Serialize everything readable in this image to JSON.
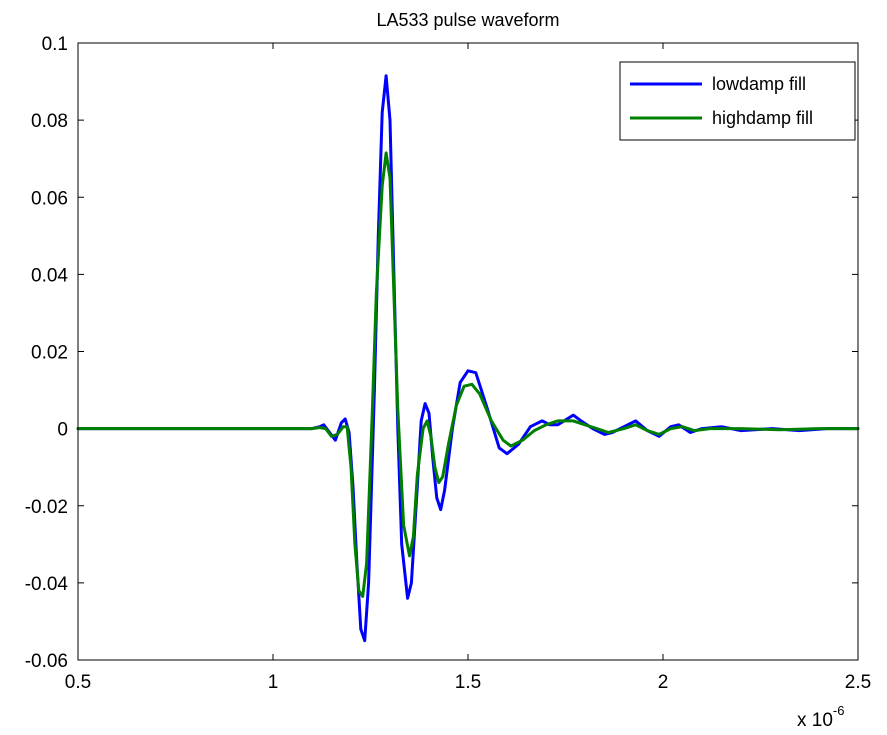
{
  "chart_data": {
    "type": "line",
    "title": "LA533 pulse waveform",
    "xlabel": "",
    "ylabel": "",
    "x_exponent_label": "x 10",
    "x_exponent_power": "-6",
    "xlim": [
      0.5,
      2.5
    ],
    "ylim": [
      -0.06,
      0.1
    ],
    "x_ticks": [
      0.5,
      1,
      1.5,
      2,
      2.5
    ],
    "x_tick_labels": [
      "0.5",
      "1",
      "1.5",
      "2",
      "2.5"
    ],
    "y_ticks": [
      -0.06,
      -0.04,
      -0.02,
      0,
      0.02,
      0.04,
      0.06,
      0.08,
      0.1
    ],
    "y_tick_labels": [
      "-0.06",
      "-0.04",
      "-0.02",
      "0",
      "0.02",
      "0.04",
      "0.06",
      "0.08",
      "0.1"
    ],
    "grid": false,
    "legend_position": "top-right",
    "series": [
      {
        "name": "lowdamp fill",
        "color": "#0000ff",
        "points": [
          [
            0.5,
            0
          ],
          [
            1.1,
            0
          ],
          [
            1.12,
            0.0005
          ],
          [
            1.13,
            0.001
          ],
          [
            1.145,
            -0.001
          ],
          [
            1.16,
            -0.003
          ],
          [
            1.175,
            0.0015
          ],
          [
            1.185,
            0.0025
          ],
          [
            1.195,
            -0.001
          ],
          [
            1.205,
            -0.015
          ],
          [
            1.215,
            -0.035
          ],
          [
            1.225,
            -0.052
          ],
          [
            1.235,
            -0.055
          ],
          [
            1.245,
            -0.04
          ],
          [
            1.26,
            0.01
          ],
          [
            1.27,
            0.05
          ],
          [
            1.28,
            0.082
          ],
          [
            1.29,
            0.0915
          ],
          [
            1.3,
            0.08
          ],
          [
            1.31,
            0.04
          ],
          [
            1.32,
            0
          ],
          [
            1.33,
            -0.03
          ],
          [
            1.345,
            -0.044
          ],
          [
            1.355,
            -0.04
          ],
          [
            1.37,
            -0.015
          ],
          [
            1.38,
            0.002
          ],
          [
            1.39,
            0.0065
          ],
          [
            1.4,
            0.004
          ],
          [
            1.41,
            -0.008
          ],
          [
            1.42,
            -0.018
          ],
          [
            1.43,
            -0.021
          ],
          [
            1.44,
            -0.016
          ],
          [
            1.46,
            0
          ],
          [
            1.48,
            0.012
          ],
          [
            1.5,
            0.015
          ],
          [
            1.52,
            0.0145
          ],
          [
            1.55,
            0.005
          ],
          [
            1.58,
            -0.005
          ],
          [
            1.6,
            -0.0065
          ],
          [
            1.63,
            -0.004
          ],
          [
            1.66,
            0.0005
          ],
          [
            1.69,
            0.002
          ],
          [
            1.71,
            0.001
          ],
          [
            1.73,
            0.001
          ],
          [
            1.77,
            0.0035
          ],
          [
            1.79,
            0.002
          ],
          [
            1.82,
            0
          ],
          [
            1.85,
            -0.0015
          ],
          [
            1.87,
            -0.001
          ],
          [
            1.9,
            0.0005
          ],
          [
            1.93,
            0.002
          ],
          [
            1.96,
            -0.0005
          ],
          [
            1.99,
            -0.002
          ],
          [
            2.02,
            0.0005
          ],
          [
            2.04,
            0.001
          ],
          [
            2.07,
            -0.001
          ],
          [
            2.1,
            0
          ],
          [
            2.15,
            0.0005
          ],
          [
            2.2,
            -0.0005
          ],
          [
            2.28,
            0
          ],
          [
            2.35,
            -0.0005
          ],
          [
            2.42,
            0
          ],
          [
            2.5,
            0
          ]
        ]
      },
      {
        "name": "highdamp fill",
        "color": "#008000",
        "points": [
          [
            0.5,
            0
          ],
          [
            1.1,
            0
          ],
          [
            1.12,
            0.0003
          ],
          [
            1.135,
            0
          ],
          [
            1.15,
            -0.002
          ],
          [
            1.165,
            -0.0015
          ],
          [
            1.18,
            0.0005
          ],
          [
            1.19,
            0.0005
          ],
          [
            1.2,
            -0.01
          ],
          [
            1.21,
            -0.03
          ],
          [
            1.22,
            -0.042
          ],
          [
            1.23,
            -0.0435
          ],
          [
            1.24,
            -0.035
          ],
          [
            1.255,
            0.005
          ],
          [
            1.265,
            0.035
          ],
          [
            1.28,
            0.063
          ],
          [
            1.29,
            0.0715
          ],
          [
            1.3,
            0.065
          ],
          [
            1.31,
            0.035
          ],
          [
            1.32,
            0.005
          ],
          [
            1.335,
            -0.025
          ],
          [
            1.35,
            -0.033
          ],
          [
            1.36,
            -0.028
          ],
          [
            1.37,
            -0.012
          ],
          [
            1.385,
            0
          ],
          [
            1.395,
            0.002
          ],
          [
            1.405,
            -0.002
          ],
          [
            1.415,
            -0.01
          ],
          [
            1.425,
            -0.014
          ],
          [
            1.435,
            -0.0125
          ],
          [
            1.45,
            -0.004
          ],
          [
            1.47,
            0.006
          ],
          [
            1.49,
            0.011
          ],
          [
            1.51,
            0.0115
          ],
          [
            1.53,
            0.009
          ],
          [
            1.56,
            0.002
          ],
          [
            1.59,
            -0.003
          ],
          [
            1.61,
            -0.0045
          ],
          [
            1.64,
            -0.003
          ],
          [
            1.67,
            -0.0005
          ],
          [
            1.7,
            0.001
          ],
          [
            1.73,
            0.002
          ],
          [
            1.77,
            0.002
          ],
          [
            1.8,
            0.001
          ],
          [
            1.83,
            0
          ],
          [
            1.86,
            -0.001
          ],
          [
            1.9,
            0
          ],
          [
            1.93,
            0.001
          ],
          [
            1.96,
            -0.0005
          ],
          [
            1.99,
            -0.0015
          ],
          [
            2.02,
            0
          ],
          [
            2.05,
            0.0005
          ],
          [
            2.08,
            -0.0005
          ],
          [
            2.12,
            0
          ],
          [
            2.2,
            0
          ],
          [
            2.3,
            -0.0003
          ],
          [
            2.4,
            0
          ],
          [
            2.5,
            0
          ]
        ]
      }
    ]
  }
}
